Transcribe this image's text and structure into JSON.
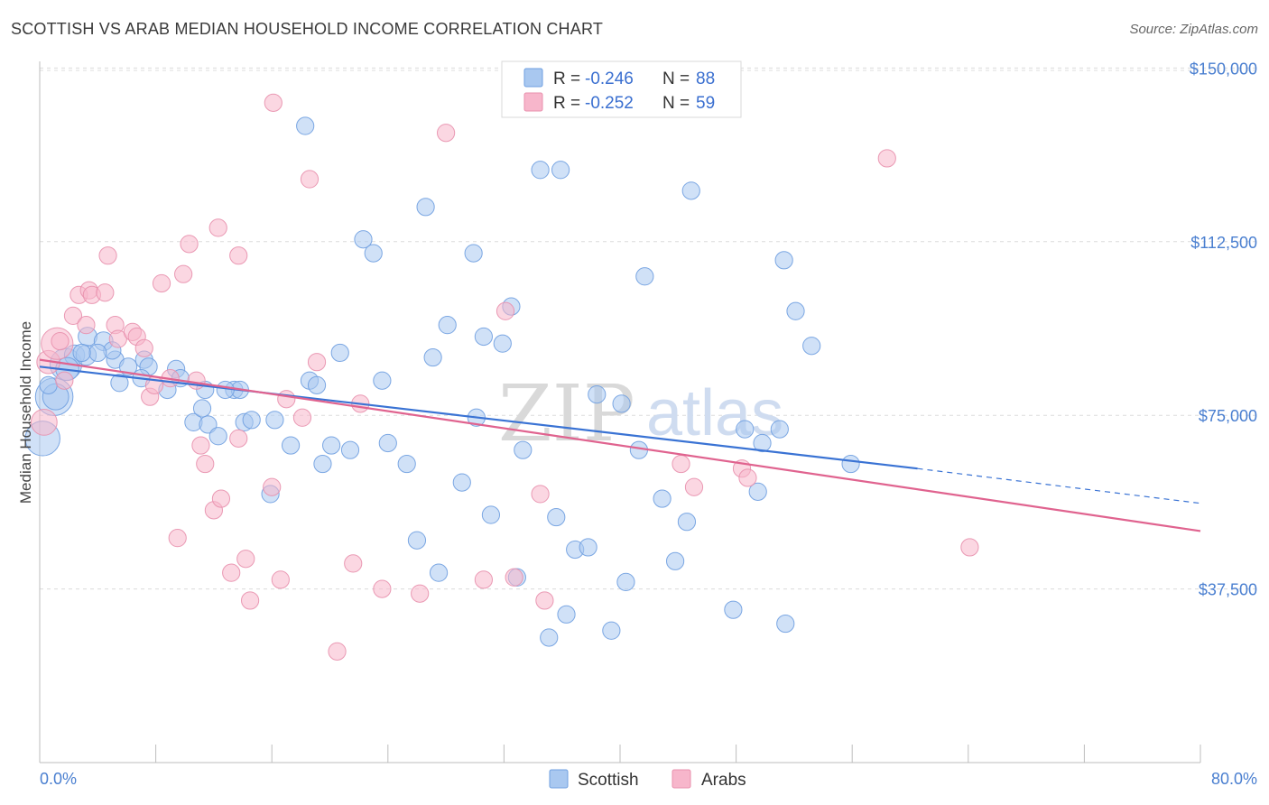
{
  "title": "SCOTTISH VS ARAB MEDIAN HOUSEHOLD INCOME CORRELATION CHART",
  "source": "Source: ZipAtlas.com",
  "watermark": {
    "zip": "ZIP",
    "atlas": "atlas"
  },
  "legend": {
    "rows": [
      {
        "r_label": "R =",
        "r_value": "-0.246",
        "n_label": "N =",
        "n_value": "88",
        "color": "#a9c8f0",
        "stroke": "#6f9fe0"
      },
      {
        "r_label": "R =",
        "r_value": "-0.252",
        "n_label": "N =",
        "n_value": "59",
        "color": "#f7b6cb",
        "stroke": "#e890ad"
      }
    ]
  },
  "bottom_legend": [
    {
      "label": "Scottish",
      "color": "#a9c8f0",
      "stroke": "#6f9fe0"
    },
    {
      "label": "Arabs",
      "color": "#f7b6cb",
      "stroke": "#e890ad"
    }
  ],
  "chart_data": {
    "type": "scatter",
    "title": "SCOTTISH VS ARAB MEDIAN HOUSEHOLD INCOME CORRELATION CHART",
    "xlabel": "",
    "ylabel": "Median Household Income",
    "xlim": [
      0,
      80
    ],
    "ylim": [
      0,
      153000
    ],
    "x_tick_labels": [
      "0.0%",
      "80.0%"
    ],
    "y_ticks": [
      37500,
      75000,
      112500,
      150000
    ],
    "y_tick_labels": [
      "$37,500",
      "$75,000",
      "$112,500",
      "$150,000"
    ],
    "grid": true,
    "legend_position": "top-center",
    "series": [
      {
        "name": "Scottish",
        "color": "#6f9fe0",
        "fill": "#a9c8f0",
        "r": -0.246,
        "n": 88,
        "trend": {
          "x0": 0,
          "y0": 85500,
          "x1": 60.5,
          "y1": 63500,
          "dash_to_x": 80,
          "dash_to_y": 56000
        },
        "points": [
          [
            0.2,
            70000,
            24
          ],
          [
            1.0,
            79000,
            26
          ],
          [
            1.8,
            86000,
            22
          ],
          [
            2.4,
            88000,
            14
          ],
          [
            3.2,
            88000,
            14
          ],
          [
            3.3,
            92000,
            13
          ],
          [
            4.4,
            91000,
            13
          ],
          [
            5.2,
            87000,
            12
          ],
          [
            5.5,
            82000,
            12
          ],
          [
            6.1,
            85500,
            12
          ],
          [
            7.2,
            87000,
            12
          ],
          [
            7.5,
            85500,
            12
          ],
          [
            8.8,
            80500,
            12
          ],
          [
            10.6,
            73500,
            12
          ],
          [
            11.6,
            73000,
            12
          ],
          [
            11.2,
            76500,
            12
          ],
          [
            12.3,
            70500,
            12
          ],
          [
            11.4,
            80500,
            12
          ],
          [
            13.4,
            80500,
            12
          ],
          [
            14.1,
            73500,
            12
          ],
          [
            14.6,
            74000,
            12
          ],
          [
            16.2,
            74000,
            12
          ],
          [
            15.9,
            58000,
            12
          ],
          [
            17.3,
            68500,
            12
          ],
          [
            18.6,
            82500,
            12
          ],
          [
            19.1,
            81500,
            12
          ],
          [
            19.5,
            64500,
            12
          ],
          [
            20.1,
            68500,
            12
          ],
          [
            20.7,
            88500,
            12
          ],
          [
            21.4,
            67500,
            12
          ],
          [
            22.3,
            113000,
            12
          ],
          [
            23.0,
            110000,
            12
          ],
          [
            23.6,
            82500,
            12
          ],
          [
            24.0,
            69000,
            12
          ],
          [
            25.3,
            64500,
            12
          ],
          [
            26.0,
            48000,
            12
          ],
          [
            26.6,
            120000,
            12
          ],
          [
            27.1,
            87500,
            12
          ],
          [
            27.5,
            41000,
            12
          ],
          [
            28.1,
            94500,
            12
          ],
          [
            29.1,
            60500,
            12
          ],
          [
            29.9,
            110000,
            12
          ],
          [
            30.1,
            74500,
            12
          ],
          [
            30.6,
            92000,
            12
          ],
          [
            31.1,
            53500,
            12
          ],
          [
            31.9,
            90500,
            12
          ],
          [
            32.5,
            98500,
            12
          ],
          [
            32.9,
            40000,
            12
          ],
          [
            33.3,
            67500,
            12
          ],
          [
            34.5,
            128000,
            12
          ],
          [
            35.1,
            27000,
            12
          ],
          [
            35.6,
            53000,
            12
          ],
          [
            35.9,
            128000,
            12
          ],
          [
            36.3,
            32000,
            12
          ],
          [
            36.9,
            46000,
            12
          ],
          [
            37.8,
            46500,
            12
          ],
          [
            38.4,
            79500,
            12
          ],
          [
            39.4,
            28500,
            12
          ],
          [
            40.1,
            77500,
            12
          ],
          [
            40.4,
            39000,
            12
          ],
          [
            41.3,
            67500,
            12
          ],
          [
            41.7,
            105000,
            12
          ],
          [
            42.9,
            57000,
            12
          ],
          [
            43.8,
            43500,
            12
          ],
          [
            44.6,
            52000,
            12
          ],
          [
            44.9,
            123500,
            12
          ],
          [
            47.8,
            33000,
            12
          ],
          [
            48.6,
            72000,
            12
          ],
          [
            49.8,
            69000,
            12
          ],
          [
            49.5,
            58500,
            12
          ],
          [
            51.0,
            72000,
            12
          ],
          [
            51.4,
            30000,
            12
          ],
          [
            52.1,
            97500,
            12
          ],
          [
            53.2,
            90000,
            12
          ],
          [
            55.9,
            64500,
            12
          ],
          [
            51.3,
            108500,
            12
          ],
          [
            18.3,
            137500,
            12
          ],
          [
            13.8,
            80500,
            12
          ],
          [
            12.8,
            80500,
            12
          ],
          [
            9.4,
            85000,
            12
          ],
          [
            9.7,
            83000,
            12
          ],
          [
            7.0,
            83000,
            12
          ],
          [
            5.0,
            89000,
            12
          ],
          [
            4.0,
            88500,
            12
          ],
          [
            2.9,
            88500,
            12
          ],
          [
            1.1,
            79000,
            18
          ],
          [
            0.6,
            81500,
            12
          ],
          [
            1.9,
            85000,
            16
          ]
        ]
      },
      {
        "name": "Arabs",
        "color": "#e890ad",
        "fill": "#f7b6cb",
        "r": -0.252,
        "n": 59,
        "trend": {
          "x0": 0,
          "y0": 87000,
          "x1": 80,
          "y1": 50000
        },
        "points": [
          [
            0.3,
            73500,
            18
          ],
          [
            0.6,
            86500,
            16
          ],
          [
            1.2,
            90500,
            22
          ],
          [
            1.4,
            91000,
            12
          ],
          [
            2.3,
            96500,
            12
          ],
          [
            2.7,
            101000,
            12
          ],
          [
            3.2,
            94500,
            12
          ],
          [
            3.4,
            102000,
            12
          ],
          [
            3.6,
            101000,
            12
          ],
          [
            4.5,
            101500,
            12
          ],
          [
            4.7,
            109500,
            12
          ],
          [
            5.2,
            94500,
            12
          ],
          [
            5.4,
            91500,
            12
          ],
          [
            6.4,
            93000,
            12
          ],
          [
            6.7,
            92000,
            12
          ],
          [
            7.2,
            89500,
            12
          ],
          [
            7.6,
            79000,
            12
          ],
          [
            7.9,
            81500,
            12
          ],
          [
            8.4,
            103500,
            12
          ],
          [
            9.0,
            83000,
            12
          ],
          [
            9.5,
            48500,
            12
          ],
          [
            9.9,
            105500,
            12
          ],
          [
            10.3,
            112000,
            12
          ],
          [
            10.8,
            82500,
            12
          ],
          [
            11.1,
            68500,
            12
          ],
          [
            11.4,
            64500,
            12
          ],
          [
            12.0,
            54500,
            12
          ],
          [
            12.3,
            115500,
            12
          ],
          [
            12.5,
            57000,
            12
          ],
          [
            13.2,
            41000,
            12
          ],
          [
            13.7,
            70000,
            12
          ],
          [
            13.7,
            109500,
            12
          ],
          [
            14.2,
            44000,
            12
          ],
          [
            14.5,
            35000,
            12
          ],
          [
            16.0,
            59500,
            12
          ],
          [
            16.6,
            39500,
            12
          ],
          [
            17.0,
            78500,
            12
          ],
          [
            18.1,
            74500,
            12
          ],
          [
            18.6,
            126000,
            12
          ],
          [
            19.1,
            86500,
            12
          ],
          [
            16.1,
            142500,
            12
          ],
          [
            20.5,
            24000,
            12
          ],
          [
            21.6,
            43000,
            12
          ],
          [
            22.1,
            77500,
            12
          ],
          [
            23.6,
            37500,
            12
          ],
          [
            26.2,
            36500,
            12
          ],
          [
            28.0,
            136000,
            12
          ],
          [
            30.6,
            39500,
            12
          ],
          [
            32.7,
            40000,
            12
          ],
          [
            32.1,
            97500,
            12
          ],
          [
            34.5,
            58000,
            12
          ],
          [
            34.8,
            35000,
            12
          ],
          [
            44.2,
            64500,
            12
          ],
          [
            45.1,
            59500,
            12
          ],
          [
            48.4,
            63500,
            12
          ],
          [
            48.8,
            61500,
            12
          ],
          [
            58.4,
            130500,
            12
          ],
          [
            64.1,
            46500,
            12
          ],
          [
            1.7,
            82500,
            12
          ]
        ]
      }
    ]
  }
}
